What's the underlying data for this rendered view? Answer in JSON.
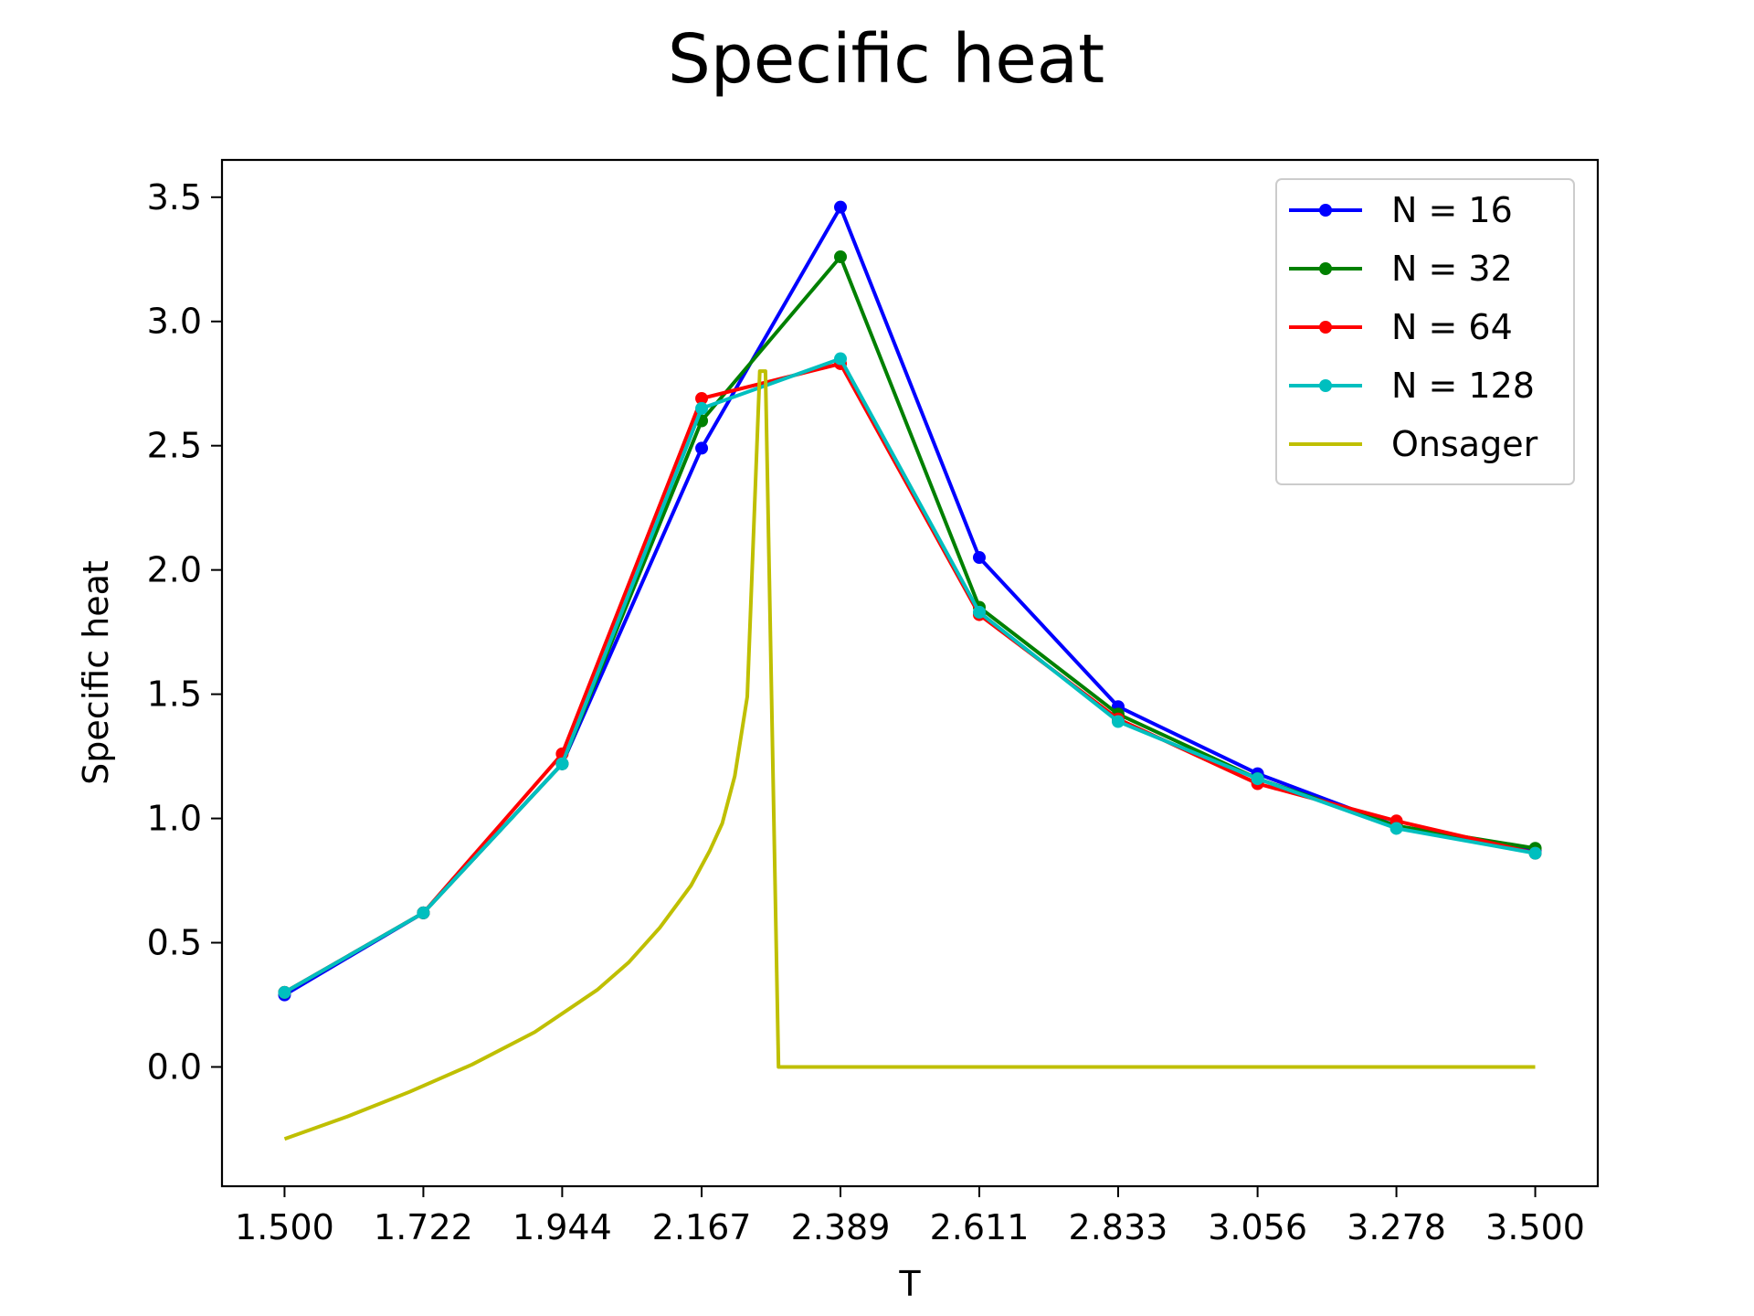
{
  "chart_data": {
    "type": "line",
    "title": "Specific heat",
    "xlabel": "T",
    "ylabel": "Specific heat",
    "xlim": [
      1.4,
      3.6
    ],
    "ylim": [
      -0.48,
      3.65
    ],
    "x_ticks": [
      "1.500",
      "1.722",
      "1.944",
      "2.167",
      "2.389",
      "2.611",
      "2.833",
      "3.056",
      "3.278",
      "3.500"
    ],
    "y_ticks": [
      "0.0",
      "0.5",
      "1.0",
      "1.5",
      "2.0",
      "2.5",
      "3.0",
      "3.5"
    ],
    "grid": false,
    "legend_position": "top-right",
    "x": [
      1.5,
      1.722,
      1.944,
      2.167,
      2.389,
      2.611,
      2.833,
      3.056,
      3.278,
      3.5
    ],
    "series": [
      {
        "name": "N = 16",
        "color": "#0000ff",
        "markers": true,
        "values": [
          0.29,
          0.62,
          1.22,
          2.49,
          3.46,
          2.05,
          1.45,
          1.18,
          0.97,
          0.87
        ]
      },
      {
        "name": "N = 32",
        "color": "#008000",
        "markers": true,
        "values": [
          0.3,
          0.62,
          1.22,
          2.6,
          3.26,
          1.85,
          1.42,
          1.16,
          0.97,
          0.88
        ]
      },
      {
        "name": "N = 64",
        "color": "#ff0000",
        "markers": true,
        "values": [
          0.3,
          0.62,
          1.26,
          2.69,
          2.83,
          1.82,
          1.4,
          1.14,
          0.99,
          0.86
        ]
      },
      {
        "name": "N = 128",
        "color": "#00bfbf",
        "markers": true,
        "values": [
          0.3,
          0.62,
          1.22,
          2.65,
          2.85,
          1.83,
          1.39,
          1.16,
          0.96,
          0.86
        ]
      },
      {
        "name": "Onsager",
        "color": "#bfbf00",
        "markers": false,
        "x": [
          1.5,
          1.6,
          1.7,
          1.8,
          1.9,
          2.0,
          2.05,
          2.1,
          2.15,
          2.18,
          2.2,
          2.22,
          2.24,
          2.26,
          2.269,
          2.29,
          2.4,
          2.6,
          2.8,
          3.0,
          3.2,
          3.5
        ],
        "values": [
          -0.29,
          -0.2,
          -0.1,
          0.01,
          0.14,
          0.31,
          0.42,
          0.56,
          0.73,
          0.87,
          0.98,
          1.17,
          1.49,
          2.8,
          2.8,
          0.0,
          0.0,
          0.0,
          0.0,
          0.0,
          0.0,
          0.0
        ]
      }
    ]
  }
}
